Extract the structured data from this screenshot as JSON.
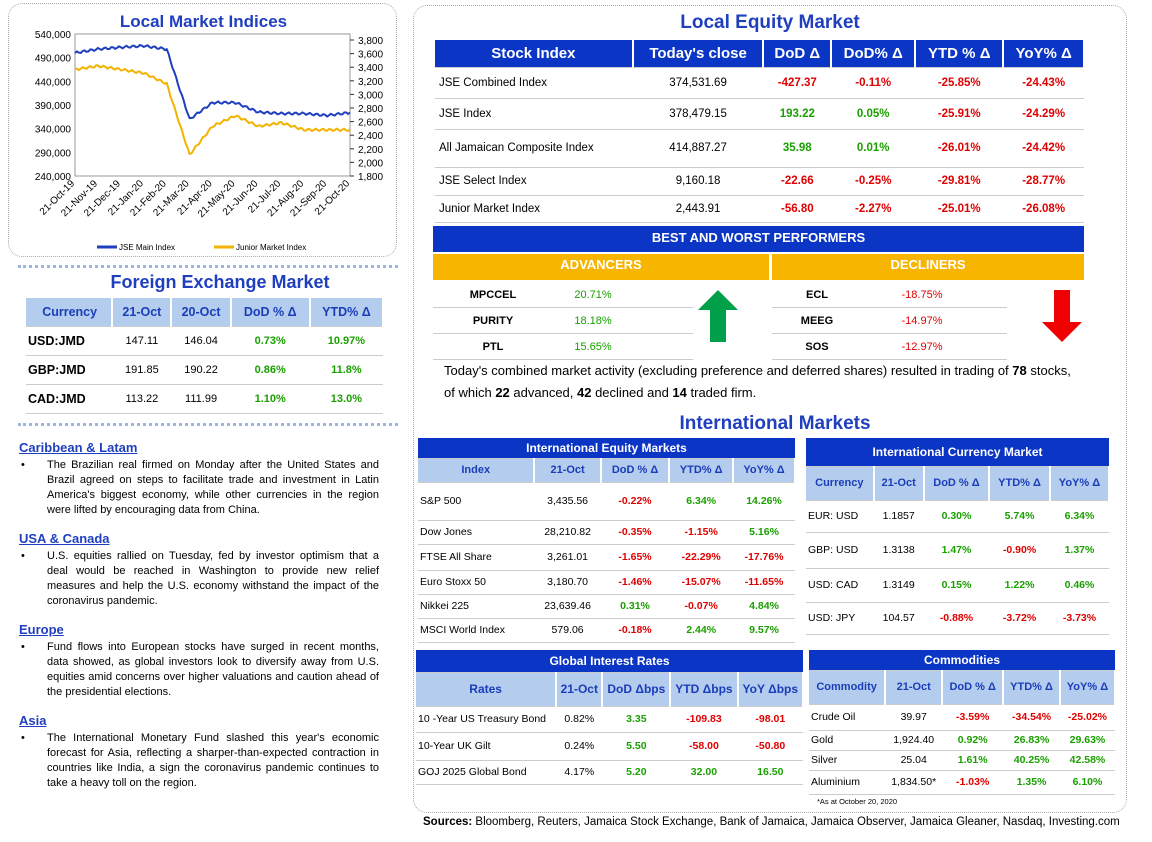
{
  "chart": {
    "title": "Local Market Indices",
    "legend_main": "JSE Main Index",
    "legend_junior": "Junior Market Index"
  },
  "chart_data": {
    "type": "line",
    "title": "Local Market Indices",
    "x": [
      "21-Oct-19",
      "21-Nov-19",
      "21-Dec-19",
      "21-Jan-20",
      "21-Feb-20",
      "21-Mar-20",
      "21-Apr-20",
      "21-May-20",
      "21-Jun-20",
      "21-Jul-20",
      "21-Aug-20",
      "21-Sep-20",
      "21-Oct-20"
    ],
    "left_axis": {
      "ticks": [
        "540,000",
        "490,000",
        "440,000",
        "390,000",
        "340,000",
        "290,000",
        "240,000"
      ],
      "ylim": [
        240000,
        540000
      ]
    },
    "right_axis": {
      "ticks": [
        "3,800",
        "3,600",
        "3,400",
        "3,200",
        "3,000",
        "2,800",
        "2,600",
        "2,400",
        "2,200",
        "2,000",
        "1,800"
      ],
      "ylim": [
        1800,
        3800
      ]
    },
    "series": [
      {
        "name": "JSE Main Index",
        "axis": "left",
        "color": "#1f3fbf",
        "values": [
          500000,
          508000,
          512000,
          515000,
          508000,
          360000,
          395000,
          395000,
          375000,
          372000,
          372000,
          368000,
          374000
        ]
      },
      {
        "name": "Junior Market Index",
        "axis": "right",
        "color": "#f2b300",
        "values": [
          3300,
          3350,
          3300,
          3250,
          3100,
          2100,
          2500,
          2650,
          2500,
          2550,
          2450,
          2450,
          2450
        ]
      }
    ],
    "legend": "bottom"
  },
  "fx": {
    "title": "Foreign Exchange Market",
    "headers": [
      "Currency",
      "21-Oct",
      "20-Oct",
      "DoD % Δ",
      "YTD% Δ"
    ],
    "rows": [
      [
        "USD:JMD",
        "147.11",
        "146.04",
        "0.73%",
        "10.97%"
      ],
      [
        "GBP:JMD",
        "191.85",
        "190.22",
        "0.86%",
        "11.8%"
      ],
      [
        "CAD:JMD",
        "113.22",
        "111.99",
        "1.10%",
        "13.0%"
      ]
    ]
  },
  "news": [
    {
      "head": "Caribbean & Latam",
      "text": "The Brazilian real firmed on Monday after the United States and Brazil agreed on steps to facilitate trade and investment in Latin America's biggest economy, while other currencies in the region were lifted by encouraging data from China."
    },
    {
      "head": "USA & Canada",
      "text": "U.S. equities rallied on Tuesday, fed by investor optimism that a deal would be reached in Washington to provide new relief measures and help the U.S. economy withstand the impact of the coronavirus pandemic."
    },
    {
      "head": "Europe",
      "text": "Fund flows into European stocks have surged in recent months, data showed, as global investors look to diversify away from U.S. equities amid concerns over higher valuations and caution ahead of the presidential elections."
    },
    {
      "head": "Asia",
      "text": "The International Monetary Fund slashed this year's economic forecast for Asia, reflecting a sharper-than-expected contraction in countries like India, a sign the coronavirus pandemic continues to take a heavy toll on the region."
    }
  ],
  "equity": {
    "title": "Local Equity Market",
    "headers": [
      "Stock Index",
      "Today's close",
      "DoD  Δ",
      "DoD% Δ",
      "YTD % Δ",
      "YoY% Δ"
    ],
    "rows": [
      [
        "JSE Combined Index",
        "374,531.69",
        "-427.37",
        "-0.11%",
        "-25.85%",
        "-24.43%"
      ],
      [
        "JSE Index",
        "378,479.15",
        "193.22",
        "0.05%",
        "-25.91%",
        "-24.29%"
      ],
      [
        "All Jamaican Composite Index",
        "414,887.27",
        "35.98",
        "0.01%",
        "-26.01%",
        "-24.42%"
      ],
      [
        "JSE Select Index",
        "9,160.18",
        "-22.66",
        "-0.25%",
        "-29.81%",
        "-28.77%"
      ],
      [
        "Junior Market Index",
        "2,443.91",
        "-56.80",
        "-2.27%",
        "-25.01%",
        "-26.08%"
      ]
    ]
  },
  "performers": {
    "title": "BEST AND WORST PERFORMERS",
    "adv_label": "ADVANCERS",
    "dec_label": "DECLINERS",
    "advancers": [
      [
        "MPCCEL",
        "20.71%"
      ],
      [
        "PURITY",
        "18.18%"
      ],
      [
        "PTL",
        "15.65%"
      ]
    ],
    "decliners": [
      [
        "ECL",
        "-18.75%"
      ],
      [
        "MEEG",
        "-14.97%"
      ],
      [
        "SOS",
        "-12.97%"
      ]
    ]
  },
  "activity": {
    "p1": "Today's combined market activity (excluding preference and deferred shares) resulted in trading of ",
    "n1": "78",
    "p2": " stocks, of which ",
    "n2": "22",
    "p3": " advanced, ",
    "n3": "42",
    "p4": " declined and ",
    "n4": "14",
    "p5": " traded firm."
  },
  "intl": {
    "title": "International Markets"
  },
  "ieq": {
    "title": "International Equity Markets",
    "headers": [
      "Index",
      "21-Oct",
      "DoD % Δ",
      "YTD% Δ",
      "YoY% Δ"
    ],
    "rows": [
      [
        "S&P 500",
        "3,435.56",
        "-0.22%",
        "6.34%",
        "14.26%"
      ],
      [
        "Dow Jones",
        "28,210.82",
        "-0.35%",
        "-1.15%",
        "5.16%"
      ],
      [
        "FTSE All Share",
        "3,261.01",
        "-1.65%",
        "-22.29%",
        "-17.76%"
      ],
      [
        "Euro Stoxx 50",
        "3,180.70",
        "-1.46%",
        "-15.07%",
        "-11.65%"
      ],
      [
        "Nikkei 225",
        "23,639.46",
        "0.31%",
        "-0.07%",
        "4.84%"
      ],
      [
        "MSCI World Index",
        "579.06",
        "-0.18%",
        "2.44%",
        "9.57%"
      ]
    ]
  },
  "icur": {
    "title": "International Currency Market",
    "headers": [
      "Currency",
      "21-Oct",
      "DoD % Δ",
      "YTD% Δ",
      "YoY% Δ"
    ],
    "rows": [
      [
        "EUR: USD",
        "1.1857",
        "0.30%",
        "5.74%",
        "6.34%"
      ],
      [
        "GBP: USD",
        "1.3138",
        "1.47%",
        "-0.90%",
        "1.37%"
      ],
      [
        "USD: CAD",
        "1.3149",
        "0.15%",
        "1.22%",
        "0.46%"
      ],
      [
        "USD: JPY",
        "104.57",
        "-0.88%",
        "-3.72%",
        "-3.73%"
      ]
    ]
  },
  "rates": {
    "title": "Global Interest Rates",
    "headers": [
      "Rates",
      "21-Oct",
      "DoD Δbps",
      "YTD Δbps",
      "YoY Δbps"
    ],
    "rows": [
      [
        "10 -Year US Treasury Bond",
        "0.82%",
        "3.35",
        "-109.83",
        "-98.01"
      ],
      [
        "10-Year UK Gilt",
        "0.24%",
        "5.50",
        "-58.00",
        "-50.80"
      ],
      [
        "GOJ 2025 Global Bond",
        "4.17%",
        "5.20",
        "32.00",
        "16.50"
      ]
    ]
  },
  "comm": {
    "title": "Commodities",
    "headers": [
      "Commodity",
      "21-Oct",
      "DoD % Δ",
      "YTD% Δ",
      "YoY% Δ"
    ],
    "rows": [
      [
        "Crude Oil",
        "39.97",
        "-3.59%",
        "-34.54%",
        "-25.02%"
      ],
      [
        "Gold",
        "1,924.40",
        "0.92%",
        "26.83%",
        "29.63%"
      ],
      [
        "Silver",
        "25.04",
        "1.61%",
        "40.25%",
        "42.58%"
      ],
      [
        "Aluminium",
        "1,834.50*",
        "-1.03%",
        "1.35%",
        "6.10%"
      ]
    ],
    "note": "*As at October 20, 2020"
  },
  "sources": {
    "label": "Sources:",
    "text": " Bloomberg, Reuters, Jamaica Stock Exchange, Bank of Jamaica, Jamaica Observer, Jamaica Gleaner, Nasdaq, Investing.com"
  }
}
